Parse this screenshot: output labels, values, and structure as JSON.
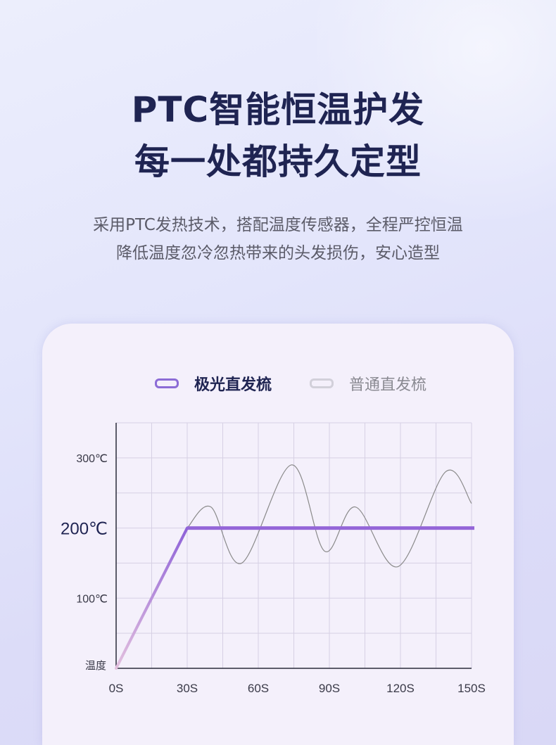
{
  "header": {
    "title_line1": "PTC智能恒温护发",
    "title_line2": "每一处都持久定型",
    "subtitle_line1": "采用PTC发热技术，搭配温度传感器，全程严控恒温",
    "subtitle_line2": "降低温度忽冷忽热带来的头发损伤，安心造型"
  },
  "chart_data": {
    "type": "line",
    "title": "",
    "xlabel": "",
    "ylabel": "温度",
    "xlim": [
      0,
      150
    ],
    "ylim": [
      0,
      350
    ],
    "grid": true,
    "legend_position": "top",
    "x_ticks": [
      "0S",
      "30S",
      "60S",
      "90S",
      "120S",
      "150S"
    ],
    "x_tick_values": [
      0,
      30,
      60,
      90,
      120,
      150
    ],
    "y_ticks": [
      "100℃",
      "200℃",
      "300℃"
    ],
    "y_tick_values": [
      100,
      200,
      300
    ],
    "series": [
      {
        "name": "极光直发梳",
        "color": "#9466d8",
        "x": [
          0,
          30,
          150
        ],
        "y": [
          0,
          200,
          200
        ]
      },
      {
        "name": "普通直发梳",
        "color": "#8a8a8a",
        "x": [
          30,
          40,
          53,
          74,
          88,
          101,
          119,
          139,
          150
        ],
        "y": [
          200,
          230,
          150,
          290,
          167,
          230,
          145,
          280,
          235
        ]
      }
    ]
  }
}
